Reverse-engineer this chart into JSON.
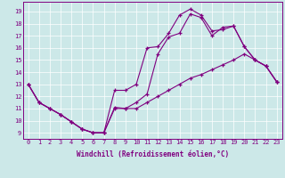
{
  "xlabel": "Windchill (Refroidissement éolien,°C)",
  "bg_color": "#cce8e8",
  "line_color": "#800080",
  "curve1_x": [
    0,
    1,
    2,
    3,
    4,
    5,
    6,
    7,
    8,
    9,
    10,
    11,
    12,
    13,
    14,
    15,
    16,
    17,
    18,
    19,
    20,
    21,
    22,
    23
  ],
  "curve1_y": [
    13.0,
    11.5,
    11.0,
    10.5,
    9.9,
    9.3,
    9.0,
    9.0,
    12.5,
    12.5,
    13.0,
    16.0,
    16.1,
    17.2,
    18.7,
    19.2,
    18.7,
    17.4,
    17.5,
    17.8,
    16.1,
    15.0,
    14.5,
    13.2
  ],
  "curve2_x": [
    0,
    1,
    2,
    3,
    4,
    5,
    6,
    7,
    8,
    9,
    10,
    11,
    12,
    13,
    14,
    15,
    16,
    17,
    18,
    19,
    20,
    21,
    22,
    23
  ],
  "curve2_y": [
    13.0,
    11.5,
    11.0,
    10.5,
    9.9,
    9.3,
    9.0,
    9.0,
    11.1,
    11.0,
    11.5,
    12.2,
    15.5,
    16.9,
    17.2,
    18.8,
    18.5,
    17.0,
    17.7,
    17.8,
    16.1,
    15.0,
    14.5,
    13.2
  ],
  "curve3_x": [
    0,
    1,
    2,
    3,
    4,
    5,
    6,
    7,
    8,
    9,
    10,
    11,
    12,
    13,
    14,
    15,
    16,
    17,
    18,
    19,
    20,
    21,
    22,
    23
  ],
  "curve3_y": [
    13.0,
    11.5,
    11.0,
    10.5,
    9.9,
    9.3,
    9.0,
    9.0,
    11.0,
    11.0,
    11.0,
    11.5,
    12.0,
    12.5,
    13.0,
    13.5,
    13.8,
    14.2,
    14.6,
    15.0,
    15.5,
    15.0,
    14.5,
    13.2
  ],
  "xlim": [
    -0.5,
    23.5
  ],
  "ylim": [
    8.5,
    19.8
  ],
  "yticks": [
    9,
    10,
    11,
    12,
    13,
    14,
    15,
    16,
    17,
    18,
    19
  ],
  "xticks": [
    0,
    1,
    2,
    3,
    4,
    5,
    6,
    7,
    8,
    9,
    10,
    11,
    12,
    13,
    14,
    15,
    16,
    17,
    18,
    19,
    20,
    21,
    22,
    23
  ],
  "tick_fontsize": 5.0,
  "xlabel_fontsize": 5.5
}
